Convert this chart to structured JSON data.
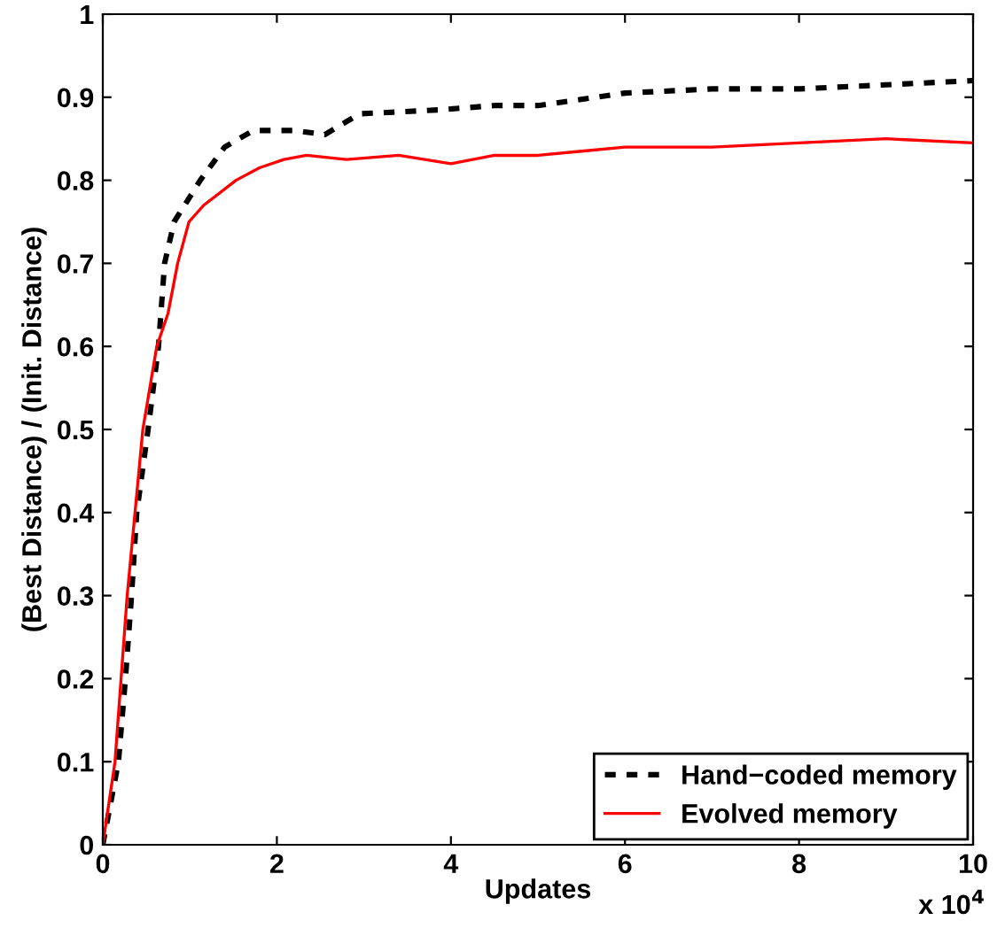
{
  "chart_data": {
    "type": "line",
    "xlabel": "Updates",
    "ylabel": "(Best Distance) / (Init. Distance)",
    "annotations": [
      "x 10$^{4}$"
    ],
    "xlim": [
      0,
      10
    ],
    "xticks": [
      0,
      2,
      4,
      6,
      8,
      10
    ],
    "ylim": [
      0,
      1
    ],
    "yticks": [
      0,
      0.1,
      0.2,
      0.3,
      0.4,
      0.5,
      0.6,
      0.7,
      0.8,
      0.9,
      1
    ],
    "grid": false,
    "legend": "bottom right",
    "marker": "none",
    "series": [
      {
        "name": "Hand−coded memory",
        "color": "#000000",
        "line_style": "dashed",
        "x": [
          0,
          0.18,
          0.26,
          0.33,
          0.39,
          0.52,
          0.64,
          0.71,
          0.82,
          1.12,
          1.4,
          1.73,
          2.2,
          2.55,
          2.95,
          3.9,
          4.5,
          5,
          6,
          7,
          8,
          9,
          10
        ],
        "values": [
          0,
          0.1,
          0.2,
          0.3,
          0.4,
          0.5,
          0.6,
          0.7,
          0.75,
          0.8,
          0.84,
          0.86,
          0.86,
          0.855,
          0.88,
          0.885,
          0.89,
          0.89,
          0.905,
          0.91,
          0.91,
          0.915,
          0.92
        ]
      },
      {
        "name": "Evolved memory",
        "color": "#ff0000",
        "line_style": "solid",
        "x": [
          0,
          0.14,
          0.21,
          0.28,
          0.37,
          0.46,
          0.62,
          0.75,
          0.86,
          0.99,
          1.16,
          1.53,
          1.8,
          2.08,
          2.34,
          2.8,
          3.4,
          4,
          4.5,
          5,
          5.5,
          6,
          7,
          8,
          9,
          10
        ],
        "values": [
          0,
          0.1,
          0.2,
          0.3,
          0.4,
          0.5,
          0.6,
          0.64,
          0.7,
          0.75,
          0.77,
          0.8,
          0.815,
          0.825,
          0.83,
          0.825,
          0.83,
          0.82,
          0.83,
          0.83,
          0.835,
          0.84,
          0.84,
          0.845,
          0.85,
          0.845
        ]
      }
    ]
  }
}
